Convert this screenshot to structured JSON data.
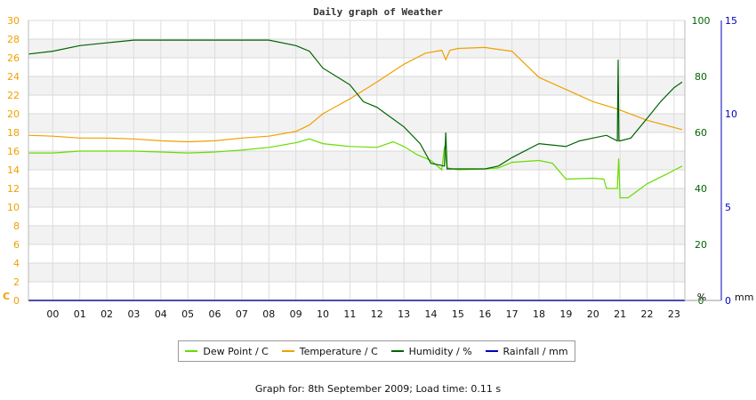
{
  "chart_data": {
    "type": "line",
    "title": "Daily graph of Weather",
    "x": [
      "00",
      "01",
      "02",
      "03",
      "04",
      "05",
      "06",
      "07",
      "08",
      "09",
      "10",
      "11",
      "12",
      "13",
      "14",
      "15",
      "16",
      "17",
      "18",
      "19",
      "20",
      "21",
      "22",
      "23"
    ],
    "xlim": [
      -0.9,
      23.4
    ],
    "axes": {
      "temp": {
        "unit": "C",
        "ylim": [
          0,
          30
        ],
        "ticks": [
          0,
          2,
          4,
          6,
          8,
          10,
          12,
          14,
          16,
          18,
          20,
          22,
          24,
          26,
          28,
          30
        ],
        "color": "#f0a000"
      },
      "humidity": {
        "unit": "%",
        "ylim": [
          0,
          100
        ],
        "ticks": [
          0,
          20,
          40,
          60,
          80,
          100
        ],
        "color": "#006400"
      },
      "rain": {
        "unit": "mm",
        "ylim": [
          0,
          15
        ],
        "ticks": [
          0,
          5,
          10,
          15
        ],
        "color": "#0000c0"
      }
    },
    "series": [
      {
        "name": "Dew Point / C",
        "axis": "temp",
        "color": "#66dd00",
        "points": [
          [
            -0.9,
            15.8
          ],
          [
            0,
            15.8
          ],
          [
            1,
            16.0
          ],
          [
            2,
            16.0
          ],
          [
            3,
            16.0
          ],
          [
            4,
            15.9
          ],
          [
            5,
            15.8
          ],
          [
            6,
            15.9
          ],
          [
            7,
            16.1
          ],
          [
            8,
            16.4
          ],
          [
            9,
            16.9
          ],
          [
            9.5,
            17.3
          ],
          [
            10,
            16.8
          ],
          [
            11,
            16.5
          ],
          [
            12,
            16.4
          ],
          [
            12.6,
            17.0
          ],
          [
            13,
            16.5
          ],
          [
            13.5,
            15.6
          ],
          [
            14,
            15.0
          ],
          [
            14.4,
            14.0
          ],
          [
            14.5,
            16.5
          ],
          [
            14.6,
            14.2
          ],
          [
            15,
            14.0
          ],
          [
            16,
            14.1
          ],
          [
            16.5,
            14.2
          ],
          [
            17,
            14.8
          ],
          [
            18,
            15.0
          ],
          [
            18.5,
            14.7
          ],
          [
            19,
            13.0
          ],
          [
            20,
            13.1
          ],
          [
            20.4,
            13.0
          ],
          [
            20.5,
            12.0
          ],
          [
            20.9,
            12.0
          ],
          [
            20.95,
            15.2
          ],
          [
            21,
            11.0
          ],
          [
            21.3,
            11.0
          ],
          [
            22,
            12.5
          ],
          [
            22.7,
            13.5
          ],
          [
            23.3,
            14.4
          ]
        ]
      },
      {
        "name": "Temperature / C",
        "axis": "temp",
        "color": "#f0a000",
        "points": [
          [
            -0.9,
            17.7
          ],
          [
            0,
            17.6
          ],
          [
            1,
            17.4
          ],
          [
            2,
            17.4
          ],
          [
            3,
            17.3
          ],
          [
            4,
            17.1
          ],
          [
            5,
            17.0
          ],
          [
            6,
            17.1
          ],
          [
            7,
            17.4
          ],
          [
            8,
            17.6
          ],
          [
            9,
            18.1
          ],
          [
            9.5,
            18.8
          ],
          [
            10,
            20.0
          ],
          [
            11,
            21.6
          ],
          [
            12,
            23.4
          ],
          [
            13,
            25.3
          ],
          [
            13.8,
            26.5
          ],
          [
            14.4,
            26.8
          ],
          [
            14.55,
            25.8
          ],
          [
            14.7,
            26.8
          ],
          [
            15,
            27.0
          ],
          [
            16,
            27.1
          ],
          [
            16.5,
            26.9
          ],
          [
            17,
            26.7
          ],
          [
            18,
            23.9
          ],
          [
            19,
            22.6
          ],
          [
            20,
            21.3
          ],
          [
            20.8,
            20.6
          ],
          [
            21,
            20.4
          ],
          [
            22,
            19.3
          ],
          [
            23.3,
            18.3
          ]
        ]
      },
      {
        "name": "Humidity / %",
        "axis": "humidity",
        "color": "#006400",
        "points": [
          [
            -0.9,
            88
          ],
          [
            0,
            89
          ],
          [
            1,
            91
          ],
          [
            2,
            92
          ],
          [
            3,
            93
          ],
          [
            4,
            93
          ],
          [
            5,
            93
          ],
          [
            6,
            93
          ],
          [
            7,
            93
          ],
          [
            8,
            93
          ],
          [
            9,
            91
          ],
          [
            9.5,
            89
          ],
          [
            10,
            83
          ],
          [
            11,
            77
          ],
          [
            11.5,
            71
          ],
          [
            12,
            69
          ],
          [
            13,
            62
          ],
          [
            13.6,
            56
          ],
          [
            14,
            49
          ],
          [
            14.5,
            48
          ],
          [
            14.55,
            60
          ],
          [
            14.6,
            47
          ],
          [
            15,
            47
          ],
          [
            16,
            47
          ],
          [
            16.5,
            48
          ],
          [
            17,
            51
          ],
          [
            18,
            56
          ],
          [
            19,
            55
          ],
          [
            19.5,
            57
          ],
          [
            20,
            58
          ],
          [
            20.5,
            59
          ],
          [
            20.9,
            57
          ],
          [
            20.93,
            86
          ],
          [
            20.96,
            57
          ],
          [
            21,
            57
          ],
          [
            21.4,
            58
          ],
          [
            22,
            65
          ],
          [
            22.5,
            71
          ],
          [
            23,
            76
          ],
          [
            23.3,
            78
          ]
        ]
      },
      {
        "name": "Rainfall / mm",
        "axis": "rain",
        "color": "#0000c0",
        "points": [
          [
            -0.9,
            0
          ],
          [
            23.4,
            0
          ]
        ]
      }
    ]
  },
  "footer": "Graph for: 8th September 2009; Load time: 0.11 s"
}
